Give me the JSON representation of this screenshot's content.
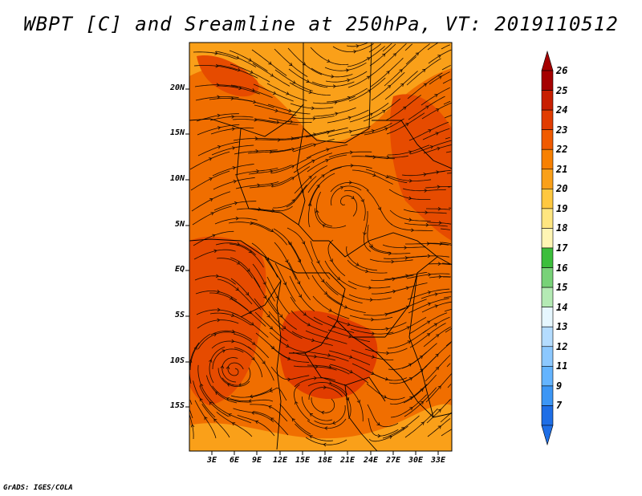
{
  "title": "WBPT [C] and Sreamline at 250hPa, VT: 2019110512",
  "footer": "GrADS: IGES/COLA",
  "map": {
    "lat_labels": [
      "20N",
      "15N",
      "10N",
      "5N",
      "EQ",
      "5S",
      "10S",
      "15S"
    ],
    "lon_labels": [
      "3E",
      "6E",
      "9E",
      "12E",
      "15E",
      "18E",
      "21E",
      "24E",
      "27E",
      "30E",
      "33E"
    ]
  },
  "colorbar": {
    "labels": [
      "26",
      "25",
      "24",
      "23",
      "22",
      "21",
      "20",
      "19",
      "18",
      "17",
      "16",
      "15",
      "14",
      "13",
      "12",
      "11",
      "9",
      "7"
    ],
    "colors": [
      "#a50000",
      "#c81e00",
      "#e13c00",
      "#f05a00",
      "#f88000",
      "#faa019",
      "#ffc840",
      "#ffe680",
      "#fff5b4",
      "#3cbe3c",
      "#78d278",
      "#b4eab4",
      "#e6f7ff",
      "#b4dcff",
      "#8cc8ff",
      "#64b4ff",
      "#3c96f5",
      "#1e6ee6"
    ],
    "top_arrow_color": "#a50000",
    "bottom_arrow_color": "#1e6ee6"
  },
  "field_colors": {
    "base": "#f06e00",
    "light": "#faa019",
    "dark": "#e64b00",
    "darker": "#e13c00",
    "streamline": "#1a0a00"
  }
}
